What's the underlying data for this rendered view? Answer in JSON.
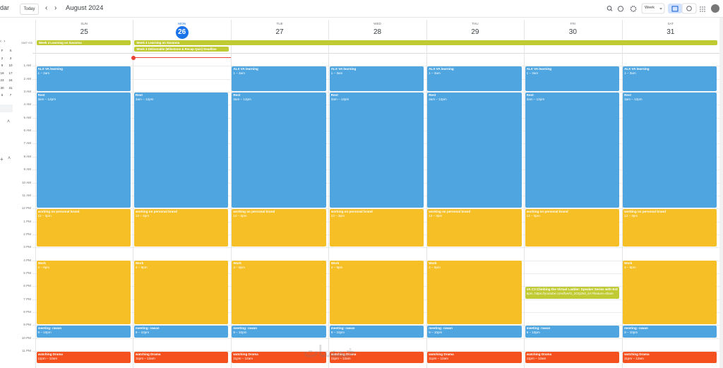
{
  "header": {
    "app_title_partial": "dar",
    "today": "Today",
    "month": "August 2024",
    "view": "Week"
  },
  "mini_calendar": {
    "rows": [
      [
        "F",
        "S"
      ],
      [
        "2",
        "3"
      ],
      [
        "9",
        "10"
      ],
      [
        "16",
        "17"
      ],
      [
        "23",
        "24"
      ],
      [
        "30",
        "31"
      ],
      [
        "6",
        "7"
      ]
    ]
  },
  "timezone": "GMT+03",
  "hours": [
    "1 AM",
    "2 AM",
    "3 AM",
    "4 AM",
    "5 AM",
    "6 AM",
    "7 AM",
    "8 AM",
    "9 AM",
    "10 AM",
    "11 AM",
    "12 PM",
    "1 PM",
    "2 PM",
    "3 PM",
    "4 PM",
    "5 PM",
    "6 PM",
    "7 PM",
    "8 PM",
    "9 PM",
    "10 PM",
    "11 PM"
  ],
  "all_day": [
    {
      "title": "Week 3 Learning on Savanna",
      "color": "#c0ca33"
    },
    {
      "title": "Week 4 Learning on Savanna",
      "color": "#c0ca33"
    },
    {
      "title": "Week 3 Deliverable (Milestone & Recap Quiz) Deadline",
      "color": "#c0ca33"
    }
  ],
  "days": [
    {
      "weekday": "SUN",
      "date": 25,
      "events": [
        {
          "title": "ALX VA learning",
          "time": "1 – 3am",
          "color": "#4ea5e0"
        },
        {
          "title": "Rest",
          "time": "3am – 12pm",
          "color": "#4ea5e0"
        },
        {
          "title": "working on personal brand",
          "time": "12 – 3pm",
          "color": "#f6bf26"
        },
        {
          "title": "Work",
          "time": "4 – 9pm",
          "color": "#f6bf26"
        },
        {
          "title": "meeting: rawan",
          "time": "9 – 10pm",
          "color": "#4ea5e0"
        },
        {
          "title": "watching Drama",
          "time": "11pm – 12am",
          "color": "#f4511e"
        }
      ]
    },
    {
      "weekday": "MON",
      "date": 26,
      "events": [
        {
          "title": "Rest",
          "time": "3am – 12pm",
          "color": "#4ea5e0"
        },
        {
          "title": "working on personal brand",
          "time": "12 – 3pm",
          "color": "#f6bf26"
        },
        {
          "title": "Work",
          "time": "4 – 9pm",
          "color": "#f6bf26"
        },
        {
          "title": "meeting: rawan",
          "time": "9 – 10pm",
          "color": "#4ea5e0"
        },
        {
          "title": "watching Drama",
          "time": "11pm – 12am",
          "color": "#f4511e"
        }
      ]
    },
    {
      "weekday": "TUE",
      "date": 27,
      "events": [
        {
          "title": "ALX VA learning",
          "time": "1 – 3am",
          "color": "#4ea5e0"
        },
        {
          "title": "Rest",
          "time": "3am – 12pm",
          "color": "#4ea5e0"
        },
        {
          "title": "working on personal brand",
          "time": "12 – 3pm",
          "color": "#f6bf26"
        },
        {
          "title": "Work",
          "time": "4 – 9pm",
          "color": "#f6bf26"
        },
        {
          "title": "meeting: rawan",
          "time": "9 – 10pm",
          "color": "#4ea5e0"
        },
        {
          "title": "watching Drama",
          "time": "11pm – 12am",
          "color": "#f4511e"
        }
      ]
    },
    {
      "weekday": "WED",
      "date": 28,
      "events": [
        {
          "title": "ALX VA learning",
          "time": "1 – 3am",
          "color": "#4ea5e0"
        },
        {
          "title": "Rest",
          "time": "3am – 12pm",
          "color": "#4ea5e0"
        },
        {
          "title": "working on personal brand",
          "time": "12 – 3pm",
          "color": "#f6bf26"
        },
        {
          "title": "Work",
          "time": "4 – 9pm",
          "color": "#f6bf26"
        },
        {
          "title": "meeting: rawan",
          "time": "9 – 10pm",
          "color": "#4ea5e0"
        },
        {
          "title": "watching Drama",
          "time": "11pm – 12am",
          "color": "#f4511e"
        }
      ]
    },
    {
      "weekday": "THU",
      "date": 29,
      "events": [
        {
          "title": "ALX VA learning",
          "time": "1 – 3am",
          "color": "#4ea5e0"
        },
        {
          "title": "Rest",
          "time": "3am – 12pm",
          "color": "#4ea5e0"
        },
        {
          "title": "working on personal brand",
          "time": "12 – 3pm",
          "color": "#f6bf26"
        },
        {
          "title": "Work",
          "time": "4 – 9pm",
          "color": "#f6bf26"
        },
        {
          "title": "meeting: rawan",
          "time": "9 – 10pm",
          "color": "#4ea5e0"
        },
        {
          "title": "watching Drama",
          "time": "11pm – 12am",
          "color": "#f4511e"
        }
      ]
    },
    {
      "weekday": "FRI",
      "date": 30,
      "events": [
        {
          "title": "ALX VA learning",
          "time": "1 – 3am",
          "color": "#4ea5e0"
        },
        {
          "title": "Rest",
          "time": "3am – 12pm",
          "color": "#4ea5e0"
        },
        {
          "title": "working on personal brand",
          "time": "12 – 3pm",
          "color": "#f6bf26"
        },
        {
          "title": "VA C3 Climbing the Virtual Ladder: Speaker Series with Esther",
          "time": "6pm, https://youtube.com/live/O_3OQ2s0_kA?feature=share",
          "color": "#c0ca33"
        },
        {
          "title": "meeting: rawan",
          "time": "9 – 10pm",
          "color": "#4ea5e0"
        },
        {
          "title": "watching Drama",
          "time": "11pm – 12am",
          "color": "#f4511e"
        }
      ]
    },
    {
      "weekday": "SAT",
      "date": 31,
      "events": [
        {
          "title": "ALX VA learning",
          "time": "1 – 3am",
          "color": "#4ea5e0"
        },
        {
          "title": "Rest",
          "time": "3am – 12pm",
          "color": "#4ea5e0"
        },
        {
          "title": "working on personal brand",
          "time": "12 – 3pm",
          "color": "#f6bf26"
        },
        {
          "title": "Work",
          "time": "4 – 9pm",
          "color": "#f6bf26"
        },
        {
          "title": "meeting: rawan",
          "time": "9 – 10pm",
          "color": "#4ea5e0"
        },
        {
          "title": "watching Drama",
          "time": "11pm – 12am",
          "color": "#f4511e"
        }
      ]
    }
  ],
  "watermark": "خمسات"
}
